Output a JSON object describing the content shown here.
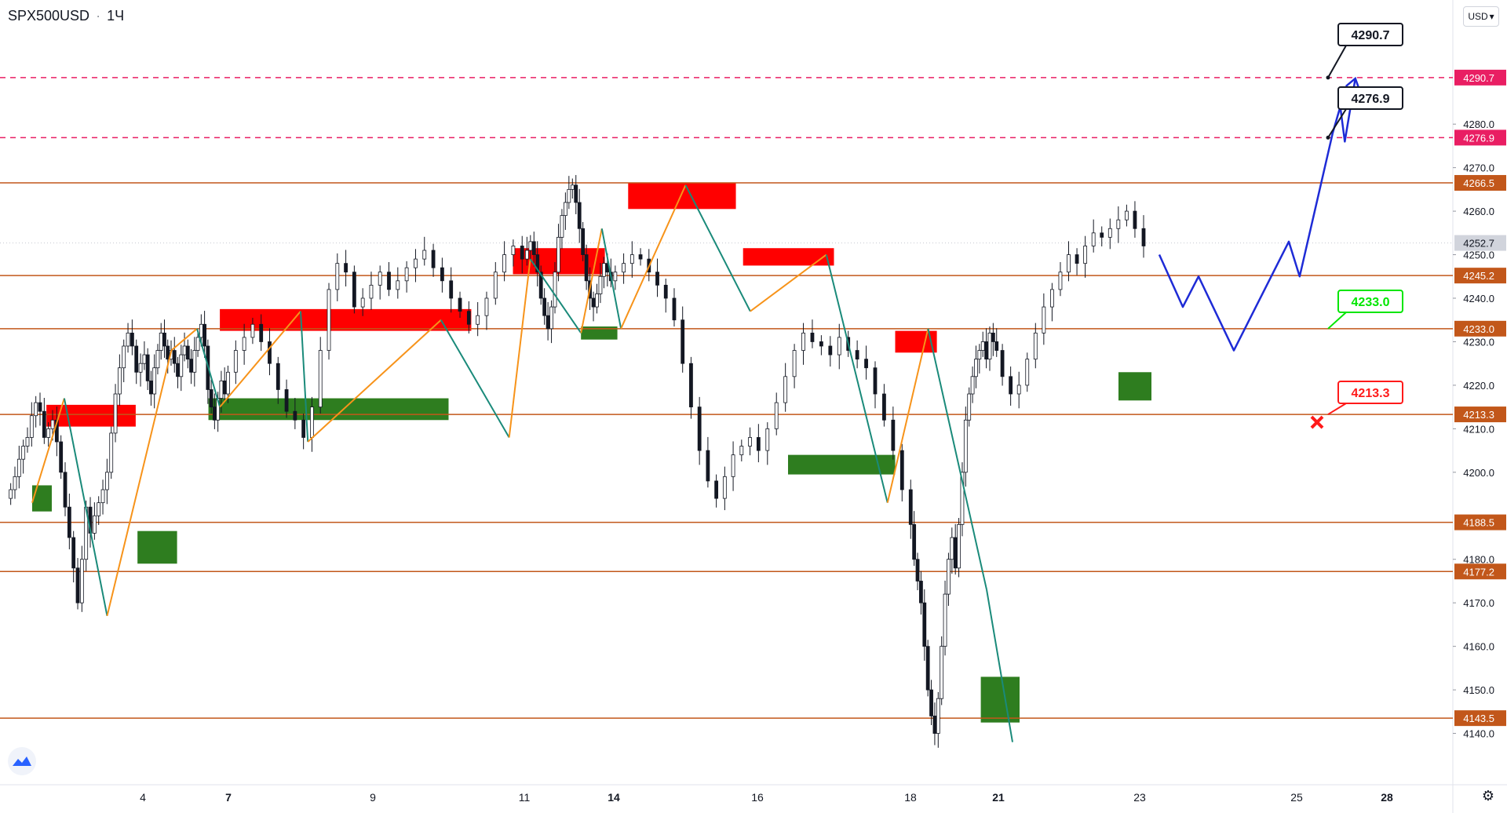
{
  "header": {
    "symbol": "SPX500USD",
    "interval": "1Ч"
  },
  "currency": {
    "label": "USD"
  },
  "icons": {
    "currency_dropdown": "chevron-down-icon",
    "logo": "tradingview-logo-icon",
    "settings": "gear-icon"
  },
  "colors": {
    "level_line": "#c2571a",
    "resistance_zone": "#ff0000",
    "support_zone": "#2e7d1f",
    "up_swing": "#f7931a",
    "down_swing": "#1a8a7a",
    "forecast": "#1e2bd6",
    "target_line": "#e91e63",
    "bullish_callout": "#00e600",
    "bearish_callout": "#ff1a1a",
    "last_price": "#c5c8d0"
  },
  "chart_data": {
    "type": "candlestick",
    "title": "",
    "x_ticks": [
      "4",
      "7",
      "9",
      "11",
      "14",
      "16",
      "18",
      "21",
      "23",
      "25",
      "28"
    ],
    "y_ticks": [
      4140.0,
      4150.0,
      4160.0,
      4170.0,
      4180.0,
      4200.0,
      4210.0,
      4220.0,
      4230.0,
      4240.0,
      4250.0,
      4260.0,
      4270.0,
      4280.0
    ],
    "ylim": [
      4130,
      4306
    ],
    "last_price": 4252.7,
    "horizontal_levels": [
      4266.5,
      4245.2,
      4233.0,
      4213.3,
      4188.5,
      4177.2,
      4143.5
    ],
    "target_levels": [
      4290.7,
      4276.9
    ],
    "callouts": [
      {
        "text": "4290.7",
        "kind": "neutral"
      },
      {
        "text": "4276.9",
        "kind": "neutral"
      },
      {
        "text": "4233.0",
        "kind": "bullish"
      },
      {
        "text": "4213.3",
        "kind": "bearish"
      }
    ],
    "resistance_zones": [
      {
        "from_day": 1.3,
        "to_day": 3.8,
        "y_low": 4210.5,
        "y_high": 4215.5
      },
      {
        "from_day": 6.7,
        "to_day": 10.3,
        "y_low": 4232.5,
        "y_high": 4237.5
      },
      {
        "from_day": 10.85,
        "to_day": 13.7,
        "y_low": 4245.5,
        "y_high": 4251.5
      },
      {
        "from_day": 14.2,
        "to_day": 15.7,
        "y_low": 4260.5,
        "y_high": 4266.5
      },
      {
        "from_day": 15.8,
        "to_day": 17.0,
        "y_low": 4247.5,
        "y_high": 4251.5
      },
      {
        "from_day": 17.8,
        "to_day": 18.9,
        "y_low": 4227.5,
        "y_high": 4232.5
      }
    ],
    "support_zones": [
      {
        "from_day": 0.9,
        "to_day": 1.45,
        "y_low": 4191.0,
        "y_high": 4197.0
      },
      {
        "from_day": 3.85,
        "to_day": 5.2,
        "y_low": 4179.0,
        "y_high": 4186.5
      },
      {
        "from_day": 6.3,
        "to_day": 10.0,
        "y_low": 4212.0,
        "y_high": 4217.0
      },
      {
        "from_day": 12.9,
        "to_day": 14.05,
        "y_low": 4230.5,
        "y_high": 4233.5
      },
      {
        "from_day": 16.4,
        "to_day": 17.8,
        "y_low": 4199.5,
        "y_high": 4204.0
      },
      {
        "from_day": 20.4,
        "to_day": 21.3,
        "y_low": 4142.5,
        "y_high": 4153.0
      },
      {
        "from_day": 22.7,
        "to_day": 23.15,
        "y_low": 4216.5,
        "y_high": 4223.0
      }
    ],
    "swing_points": [
      {
        "day": 0.9,
        "y": 4193
      },
      {
        "day": 1.8,
        "y": 4217
      },
      {
        "day": 3.0,
        "y": 4167
      },
      {
        "day": 5.0,
        "y": 4228
      },
      {
        "day": 5.9,
        "y": 4233
      },
      {
        "day": 6.7,
        "y": 4215
      },
      {
        "day": 8.0,
        "y": 4237
      },
      {
        "day": 8.1,
        "y": 4207
      },
      {
        "day": 9.9,
        "y": 4235
      },
      {
        "day": 10.8,
        "y": 4208
      },
      {
        "day": 11.2,
        "y": 4249
      },
      {
        "day": 12.9,
        "y": 4232
      },
      {
        "day": 13.6,
        "y": 4256
      },
      {
        "day": 14.1,
        "y": 4233
      },
      {
        "day": 15.0,
        "y": 4266
      },
      {
        "day": 15.9,
        "y": 4237
      },
      {
        "day": 16.9,
        "y": 4250
      },
      {
        "day": 17.7,
        "y": 4193
      },
      {
        "day": 18.6,
        "y": 4233
      },
      {
        "day": 20.6,
        "y": 4173
      },
      {
        "day": 21.2,
        "y": 4138
      }
    ],
    "candles_close": [
      4196,
      4199,
      4203,
      4206,
      4208,
      4213,
      4216,
      4214,
      4208,
      4210,
      4212,
      4207,
      4200,
      4192,
      4185,
      4178,
      4170,
      4180,
      4192,
      4186,
      4190,
      4193,
      4196,
      4200,
      4209,
      4218,
      4224,
      4229,
      4232,
      4229,
      4223,
      4225,
      4227,
      4221,
      4218,
      4224,
      4228,
      4232,
      4229,
      4226,
      4228,
      4225,
      4222,
      4227,
      4229,
      4226,
      4223,
      4228,
      4231,
      4234,
      4229,
      4219,
      4215,
      4212,
      4217,
      4221,
      4218,
      4223,
      4228,
      4231,
      4234,
      4230,
      4225,
      4219,
      4214,
      4212,
      4208,
      4215,
      4228,
      4242,
      4248,
      4246,
      4238,
      4240,
      4243,
      4246,
      4242,
      4244,
      4247,
      4249,
      4251,
      4247,
      4244,
      4240,
      4237,
      4234,
      4236,
      4240,
      4246,
      4250,
      4252,
      4249,
      4251,
      4253,
      4250,
      4246,
      4240,
      4236,
      4233,
      4238,
      4246,
      4254,
      4259,
      4262,
      4265,
      4266,
      4262,
      4256,
      4250,
      4244,
      4240,
      4238,
      4241,
      4245,
      4248,
      4246,
      4244,
      4246,
      4248,
      4250,
      4249,
      4246,
      4243,
      4240,
      4235,
      4225,
      4215,
      4205,
      4198,
      4194,
      4199,
      4204,
      4206,
      4208,
      4205,
      4210,
      4216,
      4222,
      4228,
      4232,
      4230,
      4229,
      4227,
      4231,
      4228,
      4226,
      4224,
      4218,
      4212,
      4205,
      4196,
      4188,
      4180,
      4175,
      4170,
      4160,
      4150,
      4144,
      4140,
      4148,
      4160,
      4172,
      4180,
      4185,
      4178,
      4188,
      4200,
      4212,
      4218,
      4222,
      4226,
      4228,
      4230,
      4226,
      4232,
      4230,
      4228,
      4222,
      4218,
      4220,
      4226,
      4232,
      4238,
      4242,
      4246,
      4250,
      4248,
      4252,
      4255,
      4254,
      4256,
      4258,
      4260,
      4256,
      4252
    ],
    "forecast_path": [
      {
        "day": 23.25,
        "y": 4250
      },
      {
        "day": 23.55,
        "y": 4238
      },
      {
        "day": 23.75,
        "y": 4245
      },
      {
        "day": 24.2,
        "y": 4228
      },
      {
        "day": 24.9,
        "y": 4253
      },
      {
        "day": 25.1,
        "y": 4245
      },
      {
        "day": 26.2,
        "y": 4278
      },
      {
        "day": 26.45,
        "y": 4284
      },
      {
        "day": 26.6,
        "y": 4276
      },
      {
        "day": 26.95,
        "y": 4290.5
      }
    ]
  }
}
